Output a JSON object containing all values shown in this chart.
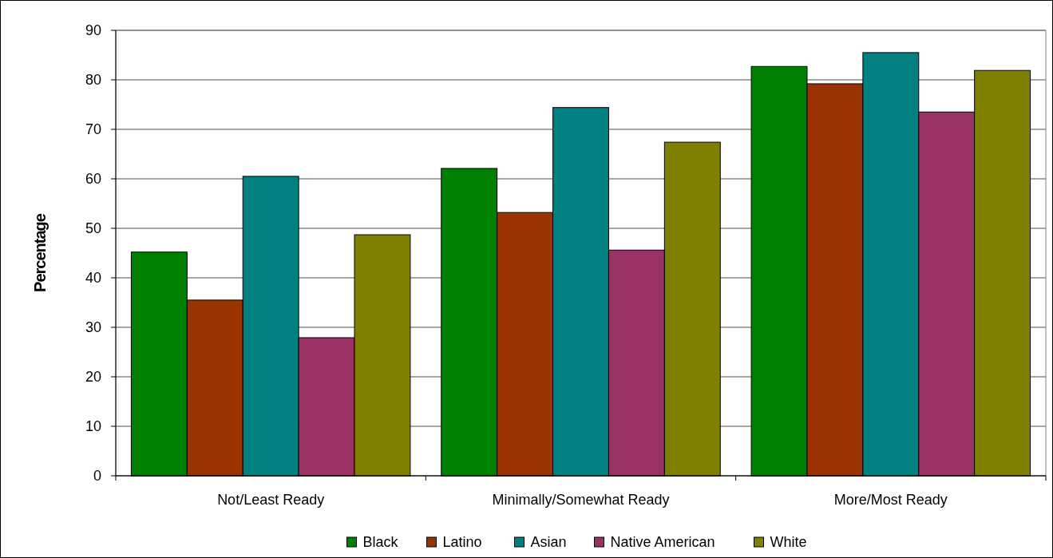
{
  "chart_data": {
    "type": "bar",
    "ylabel": "Percentage",
    "categories": [
      "Not/Least Ready",
      "Minimally/Somewhat Ready",
      "More/Most Ready"
    ],
    "series": [
      {
        "name": "Black",
        "color": "#008000",
        "values": [
          45.2,
          62.1,
          82.7
        ]
      },
      {
        "name": "Latino",
        "color": "#993300",
        "values": [
          35.5,
          53.2,
          79.2
        ]
      },
      {
        "name": "Asian",
        "color": "#008080",
        "values": [
          60.5,
          74.4,
          85.5
        ]
      },
      {
        "name": "Native American",
        "color": "#993366",
        "values": [
          27.9,
          45.6,
          73.5
        ]
      },
      {
        "name": "White",
        "color": "#808000",
        "values": [
          48.7,
          67.4,
          81.9
        ]
      }
    ],
    "ylim": [
      0,
      90
    ],
    "yticks": [
      0,
      10,
      20,
      30,
      40,
      50,
      60,
      70,
      80,
      90
    ],
    "grid": "y",
    "legend": "bottom"
  }
}
